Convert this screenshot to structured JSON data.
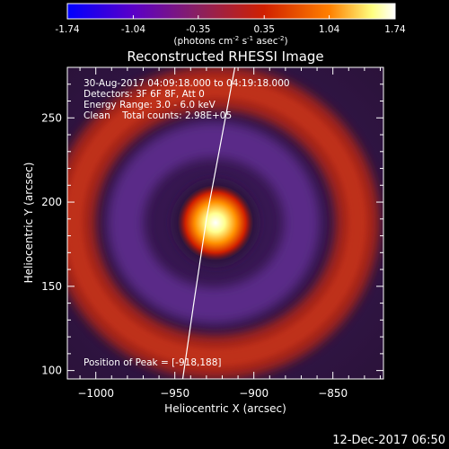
{
  "colorbar": {
    "tick_labels": [
      "-1.74",
      "-1.04",
      "-0.35",
      "0.35",
      "1.04",
      "1.74"
    ],
    "tick_values": [
      -1.74,
      -1.04,
      -0.35,
      0.35,
      1.04,
      1.74
    ],
    "range": [
      -1.74,
      1.74
    ],
    "units_prefix": "(photons cm",
    "units_sup1": "-2",
    "units_mid1": " s",
    "units_sup2": "-1",
    "units_mid2": " asec",
    "units_sup3": "-2",
    "units_suffix": ")",
    "colors": [
      "#0000ff",
      "#5a00c8",
      "#8a2060",
      "#d02000",
      "#ff8000",
      "#ffff80",
      "#ffffff"
    ]
  },
  "chart_data": {
    "type": "heatmap",
    "title": "Reconstructed RHESSI Image",
    "xlabel": "Heliocentric X (arcsec)",
    "ylabel": "Heliocentric Y (arcsec)",
    "xlim": [
      -1018,
      -818
    ],
    "ylim": [
      95,
      280
    ],
    "x_ticks": [
      -1000,
      -950,
      -900,
      -850
    ],
    "y_ticks": [
      100,
      150,
      200,
      250
    ],
    "x_tick_labels": [
      "−1000",
      "−950",
      "−900",
      "−850"
    ],
    "y_tick_labels": [
      "100",
      "150",
      "200",
      "250"
    ],
    "peak": [
      -918,
      188
    ],
    "total_counts": "2.98E+05",
    "limb_curve": [
      [
        -945,
        95
      ],
      [
        -938,
        140
      ],
      [
        -930,
        190
      ],
      [
        -920,
        240
      ],
      [
        -912,
        280
      ]
    ],
    "annotations": {
      "line1": "30-Aug-2017 04:09:18.000 to 04:19:18.000",
      "line2": "Detectors: 3F 6F 8F, Att 0",
      "line3": "Energy Range: 3.0 - 6.0 keV",
      "line4": "Clean    Total counts: 2.98E+05",
      "peak_text": "Position of Peak = [-918,188]"
    }
  },
  "footer": {
    "timestamp": "12-Dec-2017 06:50"
  }
}
